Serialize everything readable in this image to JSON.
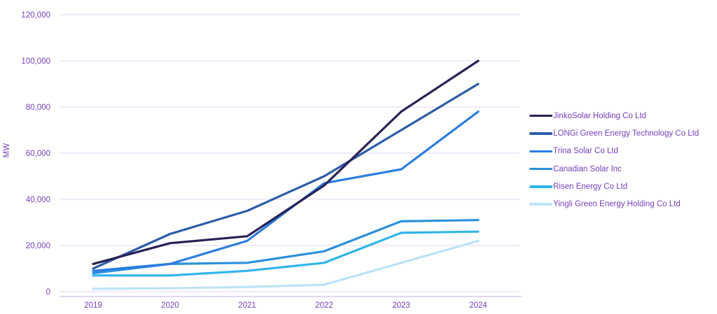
{
  "chart_data": {
    "type": "line",
    "title": "",
    "xlabel": "",
    "ylabel": "MW",
    "x": [
      "2019",
      "2020",
      "2021",
      "2022",
      "2023",
      "2024"
    ],
    "ylim": [
      0,
      120000
    ],
    "ytick_step": 20000,
    "y_tick_labels": [
      "0",
      "20,000",
      "40,000",
      "60,000",
      "80,000",
      "100,000",
      "120,000"
    ],
    "grid": "horizontal",
    "legend_position": "right",
    "series": [
      {
        "name": "JinkoSolar Holding Co Ltd",
        "color": "#292256",
        "values": [
          12000,
          21000,
          24000,
          46000,
          78000,
          100000
        ]
      },
      {
        "name": "LONGi Green Energy Technology Co Ltd",
        "color": "#2d5da8",
        "values": [
          10000,
          25000,
          35000,
          50000,
          70000,
          90000
        ]
      },
      {
        "name": "Trina Solar Co Ltd",
        "color": "#2c7ce0",
        "values": [
          9000,
          12000,
          22000,
          47000,
          53000,
          78000
        ]
      },
      {
        "name": "Canadian Solar Inc",
        "color": "#2b90dd",
        "values": [
          8000,
          12000,
          12500,
          17500,
          30500,
          31000
        ]
      },
      {
        "name": "Risen Energy Co Ltd",
        "color": "#32b4ec",
        "values": [
          7000,
          7000,
          9000,
          12500,
          25500,
          26000
        ]
      },
      {
        "name": "Yingli Green Energy Holding Co Ltd",
        "color": "#bde3f8",
        "values": [
          1200,
          1500,
          2000,
          3000,
          12500,
          22000
        ]
      }
    ],
    "colors": {
      "axis_text": "#7640bf",
      "gridline": "#eae4f6",
      "axis_line": "#d7cbee"
    }
  }
}
